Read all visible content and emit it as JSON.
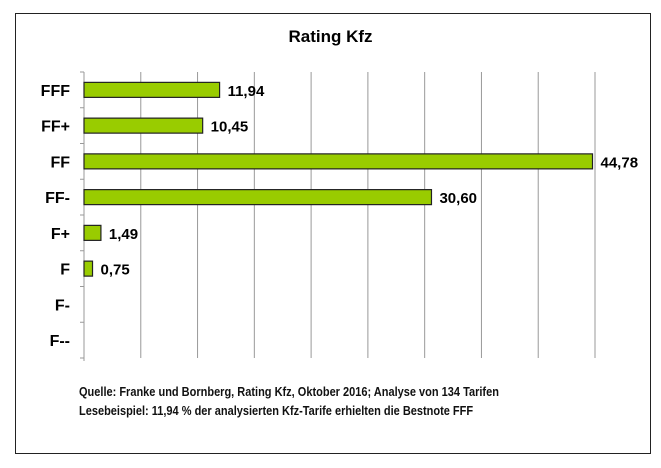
{
  "chart_data": {
    "type": "bar",
    "orientation": "horizontal",
    "title": "Rating Kfz",
    "categories": [
      "FFF",
      "FF+",
      "FF",
      "FF-",
      "F+",
      "F",
      "F-",
      "F--"
    ],
    "values": [
      11.94,
      10.45,
      44.78,
      30.6,
      1.49,
      0.75,
      null,
      null
    ],
    "value_labels": [
      "11,94",
      "10,45",
      "44,78",
      "30,60",
      "1,49",
      "0,75",
      "",
      ""
    ],
    "xlim": [
      0,
      45
    ],
    "grid_step": 5,
    "grid": true,
    "bar_color": "#99cc00",
    "xlabel": "",
    "ylabel": ""
  },
  "footer": {
    "source": "Quelle: Franke und Bornberg, Rating Kfz, Oktober 2016; Analyse von 134 Tarifen",
    "example": "Lesebeispiel: 11,94 % der analysierten Kfz-Tarife erhielten die Bestnote FFF"
  }
}
